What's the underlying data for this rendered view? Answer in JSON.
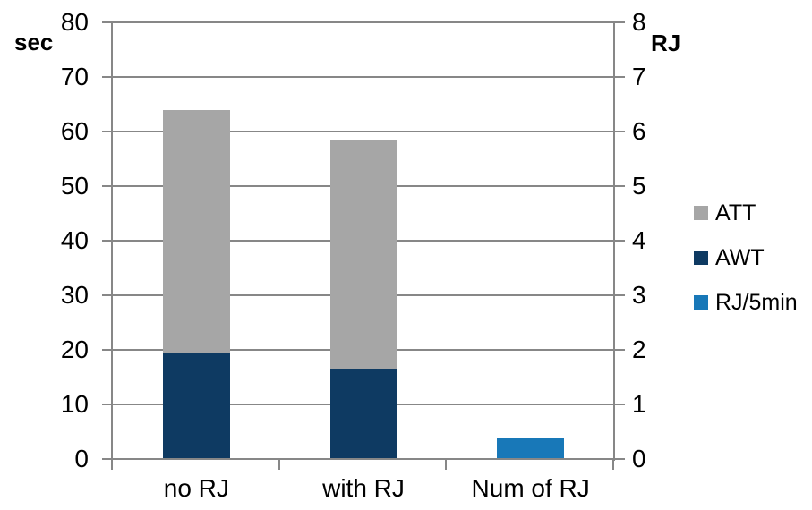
{
  "chart_data": {
    "type": "bar",
    "stacked": true,
    "title": "",
    "categories": [
      "no RJ",
      "with RJ",
      "Num of RJ"
    ],
    "series": [
      {
        "name": "ATT",
        "axis": "left",
        "color": "#a6a6a6",
        "values": [
          44.5,
          42.0,
          0
        ]
      },
      {
        "name": "AWT",
        "axis": "left",
        "color": "#0e3a62",
        "values": [
          19.5,
          16.5,
          0
        ]
      },
      {
        "name": "RJ/5min",
        "axis": "right",
        "color": "#1878b8",
        "values": [
          0,
          0,
          0.4
        ]
      }
    ],
    "stack_totals_left_axis": {
      "no RJ": 64,
      "with RJ": 58.5
    },
    "left_axis": {
      "title": "sec",
      "min": 0,
      "max": 80,
      "step": 10
    },
    "right_axis": {
      "title": "RJ",
      "min": 0,
      "max": 8,
      "step": 1
    },
    "legend_position": "right",
    "grid": true
  },
  "colors": {
    "background": "#ffffff",
    "gridline": "#878787",
    "axis": "#878787",
    "text": "#000000",
    "att": "#a6a6a6",
    "awt": "#0e3a62",
    "rj5min": "#1878b8"
  }
}
